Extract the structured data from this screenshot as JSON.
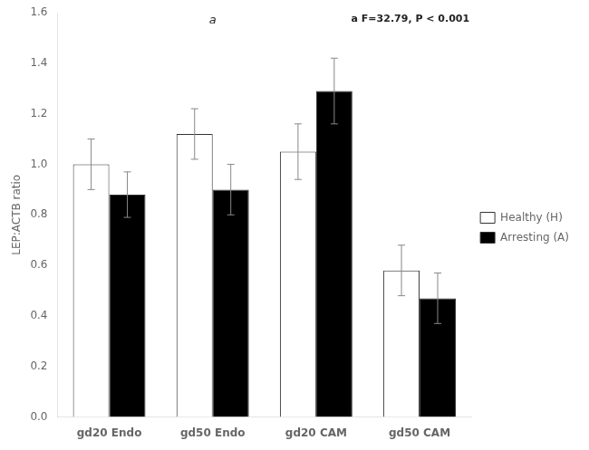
{
  "chart_data": {
    "type": "bar",
    "categories": [
      "gd20 Endo",
      "gd50 Endo",
      "gd20 CAM",
      "gd50 CAM"
    ],
    "series": [
      {
        "name": "Healthy (H)",
        "color": "white",
        "values": [
          1.0,
          1.12,
          1.05,
          0.58
        ],
        "errors": [
          0.1,
          0.1,
          0.11,
          0.1
        ]
      },
      {
        "name": "Arresting (A)",
        "color": "black",
        "values": [
          0.88,
          0.9,
          1.29,
          0.47
        ],
        "errors": [
          0.09,
          0.1,
          0.13,
          0.1
        ]
      }
    ],
    "ylabel": "LEP:ACTB ratio",
    "ylim": [
      0,
      1.6
    ],
    "yticks": [
      {
        "value": 0,
        "label": "0.0"
      },
      0.2,
      0.4,
      0.6,
      0.8,
      {
        "value": 1.0,
        "label": "1.0"
      },
      1.2,
      1.4,
      1.6
    ],
    "grid": false,
    "legend": "right",
    "annotations": [
      "a",
      "a F=32.79, P < 0.001"
    ]
  }
}
